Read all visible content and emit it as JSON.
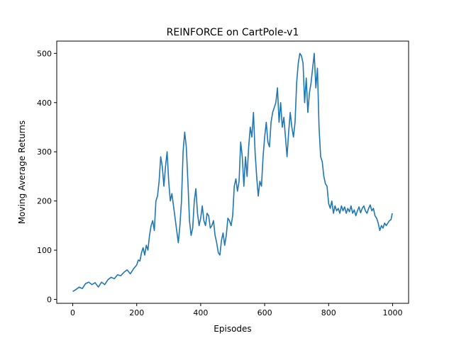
{
  "chart_data": {
    "type": "line",
    "title": "REINFORCE on CartPole-v1",
    "xlabel": "Episodes",
    "ylabel": "Moving Average Returns",
    "xlim": [
      -50,
      1050
    ],
    "ylim": [
      -8,
      525
    ],
    "xticks": [
      0,
      200,
      400,
      600,
      800,
      1000
    ],
    "yticks": [
      0,
      100,
      200,
      300,
      400,
      500
    ],
    "grid": false,
    "legend": "none",
    "series": [
      {
        "color": "#1f77b4",
        "x": [
          0,
          10,
          20,
          30,
          40,
          50,
          60,
          70,
          80,
          90,
          100,
          110,
          120,
          130,
          140,
          150,
          160,
          170,
          180,
          190,
          200,
          205,
          210,
          215,
          220,
          225,
          230,
          235,
          240,
          245,
          250,
          255,
          260,
          265,
          270,
          275,
          280,
          285,
          290,
          295,
          300,
          305,
          310,
          315,
          320,
          325,
          330,
          335,
          340,
          345,
          350,
          355,
          360,
          365,
          370,
          375,
          380,
          385,
          390,
          395,
          400,
          405,
          410,
          415,
          420,
          425,
          430,
          435,
          440,
          445,
          450,
          455,
          460,
          465,
          470,
          475,
          480,
          485,
          490,
          495,
          500,
          505,
          510,
          515,
          520,
          525,
          530,
          535,
          540,
          545,
          550,
          555,
          560,
          565,
          570,
          575,
          580,
          585,
          590,
          595,
          600,
          605,
          610,
          615,
          620,
          625,
          630,
          635,
          640,
          645,
          650,
          655,
          660,
          665,
          670,
          675,
          680,
          685,
          690,
          695,
          700,
          705,
          710,
          715,
          720,
          725,
          730,
          735,
          740,
          745,
          750,
          755,
          760,
          765,
          770,
          775,
          780,
          785,
          790,
          795,
          800,
          805,
          810,
          815,
          820,
          825,
          830,
          835,
          840,
          845,
          850,
          855,
          860,
          865,
          870,
          875,
          880,
          885,
          890,
          895,
          900,
          905,
          910,
          915,
          920,
          925,
          930,
          935,
          940,
          945,
          950,
          955,
          960,
          965,
          970,
          975,
          980,
          985,
          990,
          995,
          999
        ],
        "y": [
          16,
          20,
          25,
          22,
          32,
          35,
          30,
          34,
          25,
          35,
          30,
          40,
          45,
          42,
          50,
          48,
          55,
          60,
          52,
          62,
          70,
          80,
          78,
          95,
          105,
          90,
          110,
          100,
          130,
          150,
          160,
          140,
          200,
          210,
          240,
          290,
          270,
          230,
          270,
          300,
          240,
          200,
          215,
          190,
          165,
          140,
          115,
          150,
          200,
          300,
          340,
          310,
          240,
          160,
          130,
          145,
          200,
          225,
          175,
          150,
          165,
          190,
          160,
          150,
          175,
          170,
          145,
          150,
          160,
          130,
          115,
          95,
          90,
          120,
          135,
          110,
          130,
          165,
          160,
          150,
          170,
          230,
          245,
          220,
          240,
          320,
          290,
          230,
          290,
          250,
          310,
          350,
          330,
          380,
          300,
          250,
          210,
          240,
          230,
          290,
          330,
          360,
          320,
          310,
          360,
          380,
          390,
          400,
          430,
          360,
          400,
          350,
          370,
          330,
          290,
          340,
          380,
          350,
          330,
          360,
          440,
          480,
          500,
          495,
          480,
          400,
          450,
          380,
          420,
          440,
          470,
          500,
          430,
          470,
          350,
          290,
          280,
          250,
          235,
          230,
          195,
          185,
          200,
          175,
          190,
          180,
          185,
          175,
          190,
          180,
          188,
          175,
          185,
          178,
          190,
          175,
          182,
          170,
          180,
          188,
          176,
          185,
          190,
          180,
          175,
          185,
          192,
          180,
          185,
          170,
          165,
          155,
          140,
          150,
          145,
          155,
          150,
          155,
          160,
          162,
          175
        ]
      }
    ]
  }
}
